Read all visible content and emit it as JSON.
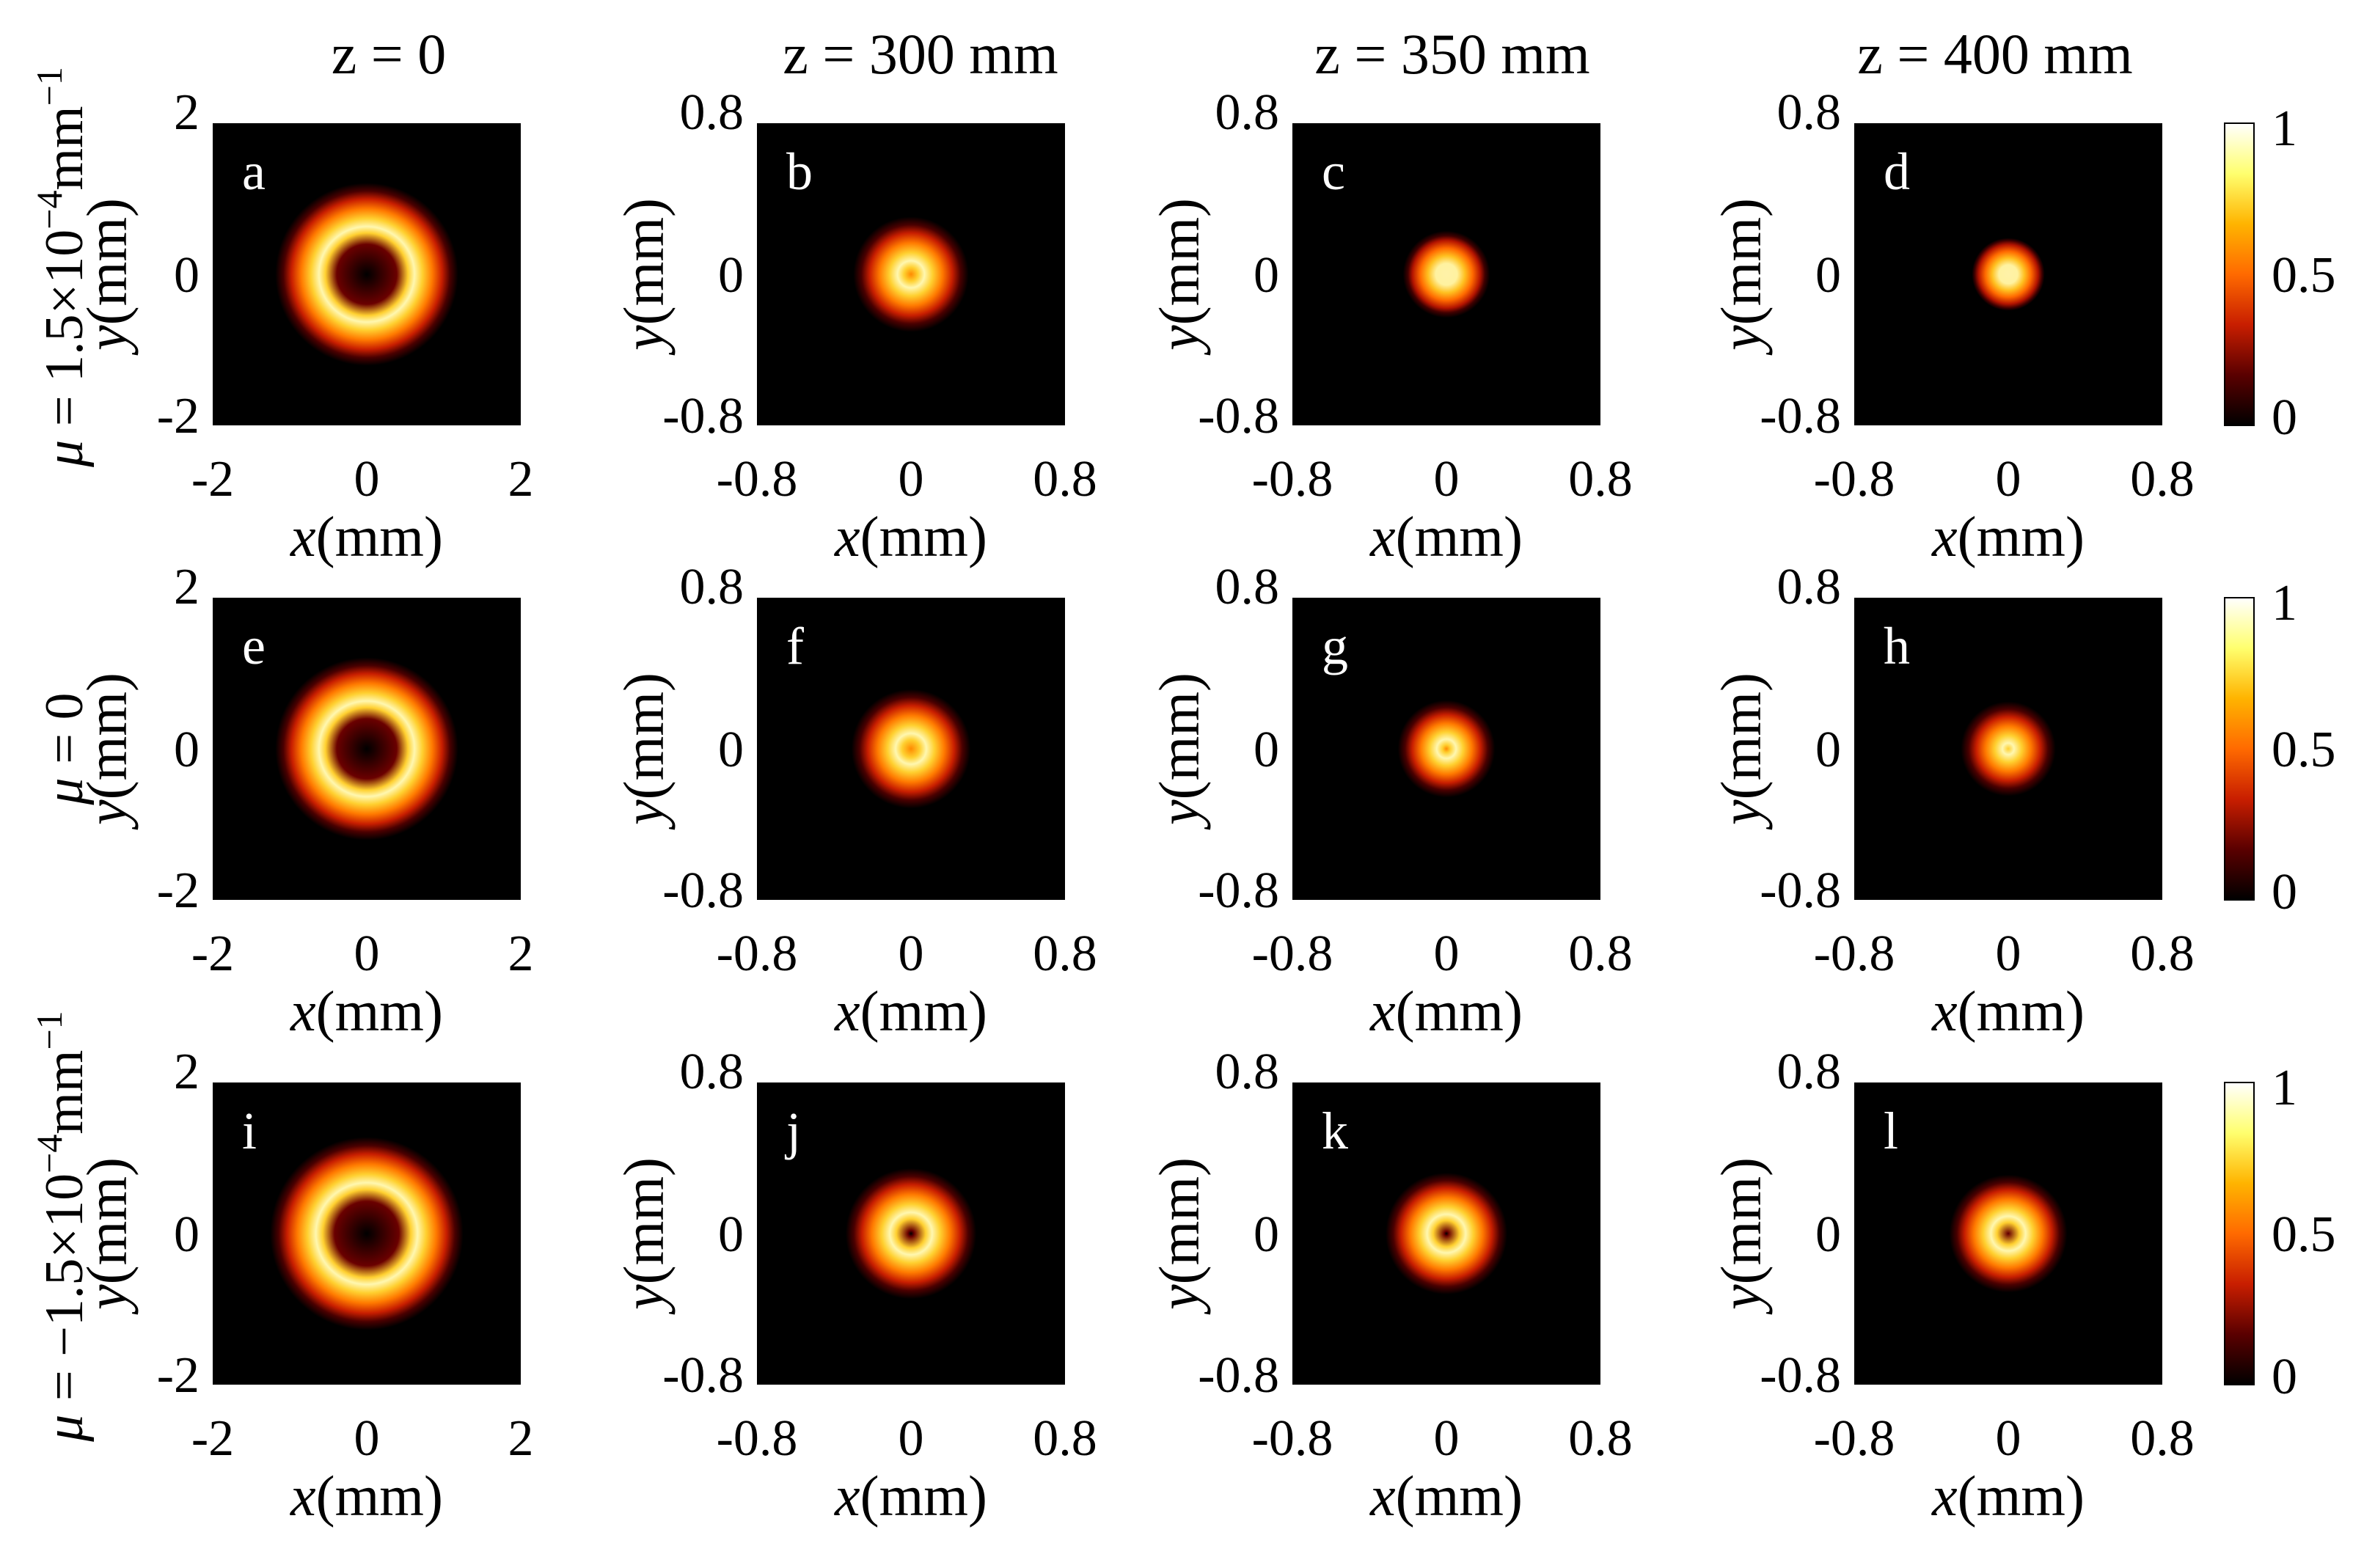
{
  "chart_data": {
    "type": "heatmap",
    "description_kind": "normalized intensity profiles of a beam at several propagation distances for three values of mu",
    "column_titles": [
      "z = 0",
      "z = 300 mm",
      "z = 350 mm",
      "z = 400 mm"
    ],
    "row_labels": [
      {
        "prefix": "μ",
        "text": " = 1.5×10",
        "sup": "−4",
        "unit": "mm",
        "unit_sup": "−1"
      },
      {
        "prefix": "μ",
        "text": " = 0",
        "sup": "",
        "unit": "",
        "unit_sup": ""
      },
      {
        "prefix": "μ",
        "text": " = −1.5×10",
        "sup": "−4",
        "unit": "mm",
        "unit_sup": "−1"
      }
    ],
    "xlabel": {
      "var": "x",
      "unit": "(mm)"
    },
    "ylabel": {
      "var": "y",
      "unit": "(mm)"
    },
    "axis_ticks": {
      "wide": [
        "-2",
        "0",
        "2"
      ],
      "narrow": [
        "-0.8",
        "0",
        "0.8"
      ]
    },
    "axis_ranges": {
      "wide": [
        -2,
        2
      ],
      "narrow": [
        -0.8,
        0.8
      ]
    },
    "colorbar": {
      "ticks": [
        "0",
        "0.5",
        "1"
      ],
      "range": [
        0,
        1
      ],
      "colormap": "hot",
      "colors": [
        "#000000",
        "#5a0000",
        "#c81e00",
        "#ff6a00",
        "#ffb400",
        "#ffff6e",
        "#ffffff"
      ]
    },
    "panels": [
      {
        "letter": "a",
        "row": 0,
        "col": 0,
        "range": "wide",
        "ring_radius_mm": 0.62,
        "ring_width_mm": 0.42,
        "center_dip": 1.0
      },
      {
        "letter": "b",
        "row": 0,
        "col": 1,
        "range": "narrow",
        "ring_radius_mm": 0.07,
        "ring_width_mm": 0.17,
        "center_dip": 0.35
      },
      {
        "letter": "c",
        "row": 0,
        "col": 2,
        "range": "narrow",
        "ring_radius_mm": 0.01,
        "ring_width_mm": 0.16,
        "center_dip": 0.05
      },
      {
        "letter": "d",
        "row": 0,
        "col": 3,
        "range": "narrow",
        "ring_radius_mm": 0.0,
        "ring_width_mm": 0.14,
        "center_dip": 0.0
      },
      {
        "letter": "e",
        "row": 1,
        "col": 0,
        "range": "wide",
        "ring_radius_mm": 0.62,
        "ring_width_mm": 0.42,
        "center_dip": 1.0
      },
      {
        "letter": "f",
        "row": 1,
        "col": 1,
        "range": "narrow",
        "ring_radius_mm": 0.08,
        "ring_width_mm": 0.17,
        "center_dip": 0.55
      },
      {
        "letter": "g",
        "row": 1,
        "col": 2,
        "range": "narrow",
        "ring_radius_mm": 0.05,
        "ring_width_mm": 0.15,
        "center_dip": 0.35
      },
      {
        "letter": "h",
        "row": 1,
        "col": 3,
        "range": "narrow",
        "ring_radius_mm": 0.03,
        "ring_width_mm": 0.16,
        "center_dip": 0.12
      },
      {
        "letter": "i",
        "row": 2,
        "col": 0,
        "range": "wide",
        "ring_radius_mm": 0.66,
        "ring_width_mm": 0.44,
        "center_dip": 1.0
      },
      {
        "letter": "j",
        "row": 2,
        "col": 1,
        "range": "narrow",
        "ring_radius_mm": 0.11,
        "ring_width_mm": 0.17,
        "center_dip": 0.9
      },
      {
        "letter": "k",
        "row": 2,
        "col": 2,
        "range": "narrow",
        "ring_radius_mm": 0.1,
        "ring_width_mm": 0.16,
        "center_dip": 0.92
      },
      {
        "letter": "l",
        "row": 2,
        "col": 3,
        "range": "narrow",
        "ring_radius_mm": 0.09,
        "ring_width_mm": 0.16,
        "center_dip": 0.9
      }
    ]
  }
}
